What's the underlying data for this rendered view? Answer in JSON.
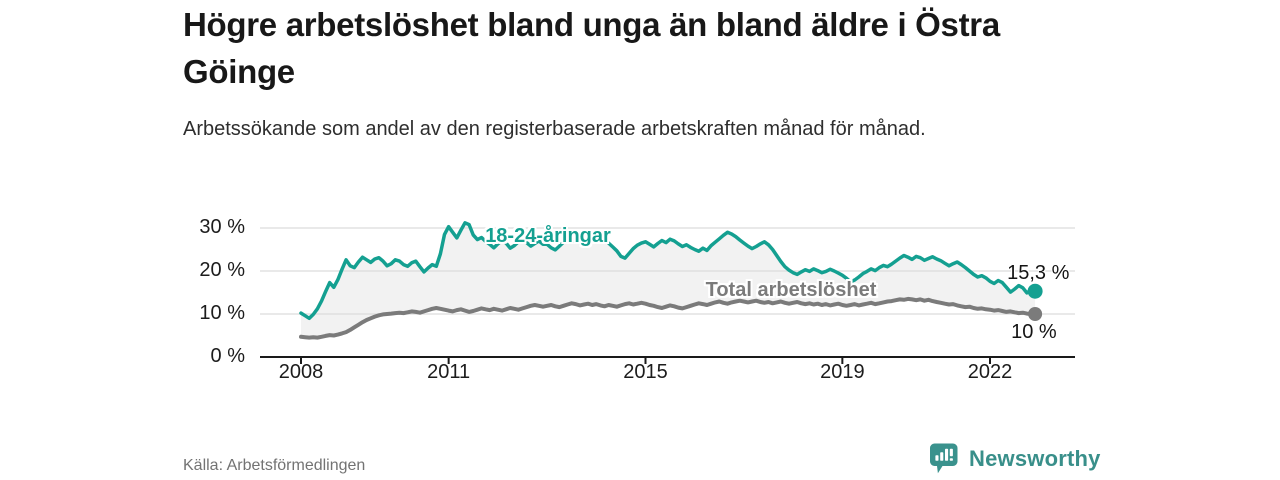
{
  "header": {
    "title": "Högre arbetslöshet bland unga än bland äldre i Östra Göinge",
    "subtitle": "Arbetssökande som andel av den registerbaserade arbetskraften månad för månad."
  },
  "footer": {
    "source": "Källa: Arbetsförmedlingen",
    "brand": "Newsworthy"
  },
  "colors": {
    "young_line": "#14a091",
    "total_line": "#7b7b7b",
    "band_fill": "#f2f2f2",
    "gridline": "#dcdcdc",
    "axis": "#1a1a1a",
    "brand_teal": "#3a928d"
  },
  "chart_data": {
    "type": "line",
    "title": "Högre arbetslöshet bland unga än bland äldre i Östra Göinge",
    "subtitle": "Arbetssökande som andel av den registerbaserade arbetskraften månad för månad.",
    "unit": "%",
    "x_start": 2008.0,
    "x_step_years": 0.0833333,
    "xlim": [
      2007.2,
      2023.7
    ],
    "ylim": [
      0,
      32
    ],
    "grid": "horizontal",
    "legend_position": "inline-labels",
    "x_ticks": [
      2008,
      2011,
      2015,
      2019,
      2022
    ],
    "x_tick_labels": [
      "2008",
      "2011",
      "2015",
      "2019",
      "2022"
    ],
    "y_ticks": [
      0,
      10,
      20,
      30
    ],
    "y_tick_labels": [
      "0 %",
      "10 %",
      "20 %",
      "30 %"
    ],
    "series": [
      {
        "name": "18-24-åringar",
        "color": "#14a091",
        "end_label": "15,3 %",
        "end_value": 15.3,
        "values": [
          10.2,
          9.6,
          9.0,
          9.9,
          11.2,
          13.0,
          15.2,
          17.3,
          16.2,
          18.0,
          20.4,
          22.6,
          21.2,
          20.8,
          22.1,
          23.2,
          22.6,
          22.0,
          22.8,
          23.1,
          22.3,
          21.2,
          21.7,
          22.6,
          22.3,
          21.5,
          21.1,
          21.9,
          22.3,
          21.0,
          19.8,
          20.7,
          21.5,
          21.1,
          24.0,
          28.5,
          30.3,
          29.0,
          27.7,
          29.5,
          31.2,
          30.8,
          28.4,
          27.3,
          27.8,
          26.9,
          26.2,
          25.4,
          26.3,
          27.1,
          26.5,
          25.3,
          25.9,
          26.8,
          27.4,
          26.6,
          25.8,
          26.4,
          27.0,
          26.2,
          26.2,
          25.4,
          24.9,
          25.8,
          26.7,
          27.3,
          26.8,
          27.5,
          28.1,
          27.6,
          28.3,
          28.9,
          29.0,
          28.2,
          27.3,
          26.5,
          25.6,
          24.7,
          23.4,
          23.0,
          24.1,
          25.2,
          26.0,
          26.5,
          26.8,
          26.2,
          25.6,
          26.4,
          27.1,
          26.6,
          27.4,
          27.0,
          26.3,
          25.7,
          26.1,
          25.5,
          25.0,
          24.6,
          25.3,
          24.8,
          25.9,
          26.7,
          27.5,
          28.3,
          29.0,
          28.6,
          28.0,
          27.2,
          26.5,
          25.8,
          25.2,
          25.7,
          26.3,
          26.8,
          26.1,
          25.0,
          23.6,
          22.2,
          21.0,
          20.2,
          19.6,
          19.2,
          19.8,
          20.3,
          19.9,
          20.5,
          20.1,
          19.6,
          19.9,
          20.4,
          20.0,
          19.5,
          19.0,
          18.3,
          17.5,
          17.9,
          18.6,
          19.4,
          19.9,
          20.5,
          20.1,
          20.8,
          21.3,
          21.0,
          21.6,
          22.3,
          23.0,
          23.6,
          23.2,
          22.7,
          23.4,
          23.1,
          22.5,
          22.9,
          23.3,
          22.8,
          22.4,
          21.8,
          21.2,
          21.7,
          22.1,
          21.5,
          20.8,
          20.0,
          19.2,
          18.6,
          18.9,
          18.4,
          17.6,
          17.1,
          17.8,
          17.3,
          16.2,
          15.1,
          15.8,
          16.6,
          16.1,
          14.9,
          15.6,
          15.3
        ]
      },
      {
        "name": "Total arbetslöshet",
        "color": "#7b7b7b",
        "end_label": "10 %",
        "end_value": 10.0,
        "values": [
          4.7,
          4.6,
          4.5,
          4.6,
          4.5,
          4.7,
          4.9,
          5.1,
          5.0,
          5.2,
          5.5,
          5.8,
          6.3,
          6.9,
          7.5,
          8.1,
          8.6,
          9.0,
          9.4,
          9.7,
          9.9,
          10.0,
          10.1,
          10.2,
          10.3,
          10.2,
          10.4,
          10.6,
          10.5,
          10.3,
          10.6,
          10.9,
          11.2,
          11.4,
          11.2,
          11.0,
          10.8,
          10.6,
          10.9,
          11.1,
          10.8,
          10.5,
          10.7,
          11.0,
          11.3,
          11.1,
          10.9,
          11.2,
          11.0,
          10.8,
          11.1,
          11.4,
          11.2,
          11.0,
          11.3,
          11.6,
          11.9,
          12.1,
          11.9,
          11.7,
          11.9,
          12.1,
          11.8,
          11.6,
          11.9,
          12.2,
          12.5,
          12.3,
          12.0,
          12.2,
          12.4,
          12.1,
          12.3,
          12.0,
          11.8,
          12.1,
          11.9,
          11.7,
          12.0,
          12.3,
          12.5,
          12.2,
          12.4,
          12.6,
          12.4,
          12.1,
          11.9,
          11.6,
          11.4,
          11.7,
          12.0,
          11.8,
          11.5,
          11.3,
          11.6,
          11.9,
          12.2,
          12.5,
          12.3,
          12.1,
          12.4,
          12.7,
          12.9,
          12.6,
          12.4,
          12.7,
          12.9,
          13.1,
          12.9,
          12.7,
          12.9,
          13.1,
          12.8,
          12.6,
          12.8,
          12.5,
          12.7,
          12.9,
          12.6,
          12.4,
          12.6,
          12.8,
          12.5,
          12.3,
          12.5,
          12.2,
          12.4,
          12.1,
          12.3,
          12.0,
          12.2,
          12.4,
          12.1,
          11.9,
          12.1,
          12.3,
          12.0,
          12.2,
          12.4,
          12.6,
          12.3,
          12.5,
          12.7,
          12.9,
          13.0,
          13.2,
          13.4,
          13.3,
          13.5,
          13.4,
          13.2,
          13.4,
          13.1,
          13.3,
          13.0,
          12.8,
          12.6,
          12.4,
          12.2,
          12.3,
          12.0,
          11.8,
          11.6,
          11.7,
          11.4,
          11.2,
          11.3,
          11.1,
          11.0,
          10.8,
          10.9,
          10.7,
          10.5,
          10.6,
          10.4,
          10.2,
          10.3,
          10.1,
          10.0,
          10.0
        ]
      }
    ]
  }
}
